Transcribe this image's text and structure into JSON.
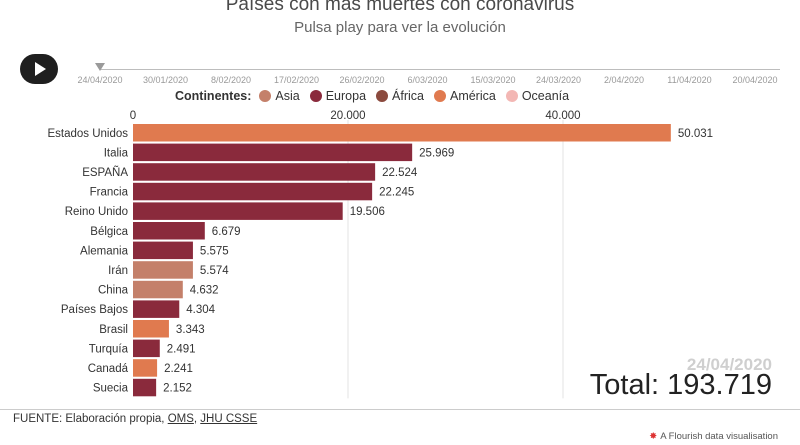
{
  "header": {
    "title": "Países con más muertes con coronavirus",
    "subtitle": "Pulsa play para ver la evolución"
  },
  "timeline": {
    "dates": [
      "24/04/2020",
      "30/01/2020",
      "8/02/2020",
      "17/02/2020",
      "26/02/2020",
      "6/03/2020",
      "15/03/2020",
      "24/03/2020",
      "2/04/2020",
      "11/04/2020",
      "20/04/2020"
    ]
  },
  "legend": {
    "title": "Continentes:",
    "items": [
      {
        "label": "Asia",
        "color": "#c4806a"
      },
      {
        "label": "Europa",
        "color": "#8a2a3c"
      },
      {
        "label": "África",
        "color": "#8b4a3e"
      },
      {
        "label": "América",
        "color": "#e07a4f"
      },
      {
        "label": "Oceanía",
        "color": "#f3b7b4"
      }
    ]
  },
  "chart_data": {
    "type": "bar",
    "orientation": "horizontal",
    "axis_ticks": [
      "0",
      "20.000",
      "40.000"
    ],
    "xlim": [
      0,
      60000
    ],
    "categories": [
      "Estados Unidos",
      "Italia",
      "ESPAÑA",
      "Francia",
      "Reino Unido",
      "Bélgica",
      "Alemania",
      "Irán",
      "China",
      "Países Bajos",
      "Brasil",
      "Turquía",
      "Canadá",
      "Suecia"
    ],
    "values": [
      50031,
      25969,
      22524,
      22245,
      19506,
      6679,
      5575,
      5574,
      4632,
      4304,
      3343,
      2491,
      2241,
      2152
    ],
    "value_labels": [
      "50.031",
      "25.969",
      "22.524",
      "22.245",
      "19.506",
      "6.679",
      "5.575",
      "5.574",
      "4.632",
      "4.304",
      "3.343",
      "2.491",
      "2.241",
      "2.152"
    ],
    "continents": [
      "América",
      "Europa",
      "Europa",
      "Europa",
      "Europa",
      "Europa",
      "Europa",
      "Asia",
      "Asia",
      "Europa",
      "América",
      "Europa",
      "América",
      "Europa"
    ]
  },
  "summary": {
    "date": "24/04/2020",
    "total_label": "Total: 193.719"
  },
  "footer": {
    "prefix": "FUENTE: Elaboración propia, ",
    "link1": "OMS",
    "middle": ", ",
    "link2": "JHU CSSE"
  },
  "credit": {
    "text": "A Flourish data visualisation"
  }
}
